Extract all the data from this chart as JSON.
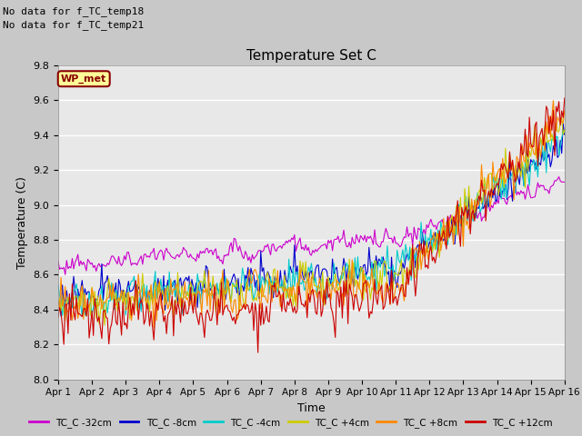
{
  "title": "Temperature Set C",
  "xlabel": "Time",
  "ylabel": "Temperature (C)",
  "ylim": [
    8.0,
    9.8
  ],
  "xlim": [
    0,
    360
  ],
  "no_data_text": [
    "No data for f_TC_temp18",
    "No data for f_TC_temp21"
  ],
  "wp_met_label": "WP_met",
  "wp_met_color": "#880000",
  "wp_met_bg": "#ffff99",
  "xtick_labels": [
    "Apr 1",
    "Apr 2",
    "Apr 3",
    "Apr 4",
    "Apr 5",
    "Apr 6",
    "Apr 7",
    "Apr 8",
    "Apr 9",
    "Apr 10",
    "Apr 11",
    "Apr 12",
    "Apr 13",
    "Apr 14",
    "Apr 15",
    "Apr 16"
  ],
  "xtick_positions": [
    0,
    24,
    48,
    72,
    96,
    120,
    144,
    168,
    192,
    216,
    240,
    264,
    288,
    312,
    336,
    360
  ],
  "ytick_labels": [
    "8.0",
    "8.2",
    "8.4",
    "8.6",
    "8.8",
    "9.0",
    "9.2",
    "9.4",
    "9.6",
    "9.8"
  ],
  "ytick_values": [
    8.0,
    8.2,
    8.4,
    8.6,
    8.8,
    9.0,
    9.2,
    9.4,
    9.6,
    9.8
  ],
  "series_colors": [
    "#cc00cc",
    "#0000cc",
    "#00cccc",
    "#cccc00",
    "#ff8800",
    "#cc0000"
  ],
  "series_labels": [
    "TC_C -32cm",
    "TC_C -8cm",
    "TC_C -4cm",
    "TC_C +4cm",
    "TC_C +8cm",
    "TC_C +12cm"
  ],
  "bg_color": "#c8c8c8",
  "plot_bg_color": "#e8e8e8",
  "n_points": 361
}
